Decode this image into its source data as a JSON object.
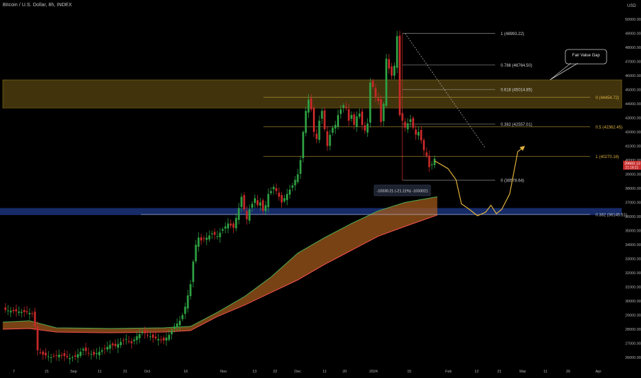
{
  "header": {
    "title": "Bitcoin / U.S. Dollar, 8h, INDEX",
    "currency": "USD"
  },
  "colors": {
    "background": "#000000",
    "up": "#26a69a",
    "candle_up": "#2ea043",
    "candle_down": "#c62828",
    "fvg_band": "#c9a227",
    "blue_band": "#1e3a8a",
    "ribbon_fill": "#a0581c",
    "ribbon_fast": "#4caf50",
    "ribbon_slow": "#ff5252",
    "fib_line": "#bdbdbd",
    "fib_orange": "#e0b341",
    "projection": "#e3b33c"
  },
  "chart_data": {
    "type": "candlestick",
    "symbol": "Bitcoin / U.S. Dollar, 8h, INDEX",
    "price_axis": {
      "min": 26000,
      "max": 50000,
      "step": 1000,
      "labels": [
        "50000.00",
        "49000.00",
        "48000.00",
        "47000.00",
        "46000.00",
        "45000.00",
        "44000.00",
        "43000.00",
        "42000.00",
        "41000.00",
        "40000.00",
        "39000.00",
        "38000.00",
        "37000.00",
        "36000.00",
        "35000.00",
        "34000.00",
        "33000.00",
        "32000.00",
        "31000.00",
        "30000.00",
        "29000.00",
        "28000.00",
        "27000.00",
        "26000.00"
      ]
    },
    "time_axis": [
      "7",
      "21",
      "Sep",
      "11",
      "21",
      "Oct",
      "16",
      "Nov",
      "13",
      "22",
      "Dec",
      "11",
      "20",
      "2024",
      "15",
      "Feb",
      "12",
      "21",
      "Mar",
      "11",
      "20",
      "Apr"
    ],
    "last_price_label": "39660.13",
    "last_price_countdown": "21:19:21",
    "price_path": [
      [
        0,
        29400
      ],
      [
        3,
        29300
      ],
      [
        6,
        29250
      ],
      [
        9,
        29200
      ],
      [
        11,
        29100
      ],
      [
        12,
        28200
      ],
      [
        13,
        26500
      ],
      [
        15,
        26200
      ],
      [
        18,
        26000
      ],
      [
        21,
        26200
      ],
      [
        23,
        26100
      ],
      [
        25,
        25950
      ],
      [
        27,
        26050
      ],
      [
        29,
        26400
      ],
      [
        30,
        26600
      ],
      [
        32,
        26300
      ],
      [
        34,
        26200
      ],
      [
        36,
        26400
      ],
      [
        38,
        26600
      ],
      [
        40,
        26900
      ],
      [
        42,
        26800
      ],
      [
        44,
        27100
      ],
      [
        46,
        27300
      ],
      [
        48,
        27000
      ],
      [
        50,
        27500
      ],
      [
        52,
        27800
      ],
      [
        54,
        27600
      ],
      [
        56,
        27400
      ],
      [
        58,
        27300
      ],
      [
        60,
        27200
      ],
      [
        62,
        27600
      ],
      [
        64,
        28200
      ],
      [
        66,
        28600
      ],
      [
        67,
        29000
      ],
      [
        68,
        29600
      ],
      [
        69,
        30400
      ],
      [
        70,
        31200
      ],
      [
        71,
        32800
      ],
      [
        72,
        34000
      ],
      [
        73,
        34500
      ],
      [
        74,
        34300
      ],
      [
        76,
        34500
      ],
      [
        78,
        34800
      ],
      [
        80,
        34600
      ],
      [
        82,
        35100
      ],
      [
        84,
        35500
      ],
      [
        86,
        35200
      ],
      [
        88,
        36600
      ],
      [
        89,
        37400
      ],
      [
        90,
        36500
      ],
      [
        91,
        35800
      ],
      [
        92,
        36500
      ],
      [
        93,
        36900
      ],
      [
        94,
        37300
      ],
      [
        95,
        36800
      ],
      [
        96,
        37000
      ],
      [
        97,
        36400
      ],
      [
        98,
        36800
      ],
      [
        99,
        37600
      ],
      [
        100,
        37800
      ],
      [
        101,
        38100
      ],
      [
        102,
        37800
      ],
      [
        103,
        37400
      ],
      [
        104,
        37000
      ],
      [
        106,
        37600
      ],
      [
        108,
        38200
      ],
      [
        110,
        39000
      ],
      [
        111,
        40000
      ],
      [
        112,
        42000
      ],
      [
        113,
        43500
      ],
      [
        114,
        44300
      ],
      [
        115,
        43600
      ],
      [
        116,
        42000
      ],
      [
        117,
        41500
      ],
      [
        118,
        42800
      ],
      [
        119,
        43500
      ],
      [
        120,
        42200
      ],
      [
        121,
        41000
      ],
      [
        122,
        41800
      ],
      [
        123,
        42300
      ],
      [
        124,
        42500
      ],
      [
        125,
        43200
      ],
      [
        126,
        43600
      ],
      [
        127,
        43900
      ],
      [
        128,
        43700
      ],
      [
        129,
        42800
      ],
      [
        130,
        43200
      ],
      [
        131,
        42500
      ],
      [
        132,
        43100
      ],
      [
        133,
        43300
      ],
      [
        134,
        42500
      ],
      [
        135,
        42100
      ],
      [
        136,
        42600
      ],
      [
        137,
        45500
      ],
      [
        138,
        45200
      ],
      [
        139,
        44500
      ],
      [
        140,
        44200
      ],
      [
        141,
        42700
      ],
      [
        142,
        44000
      ],
      [
        143,
        47200
      ],
      [
        144,
        46500
      ],
      [
        145,
        46000
      ],
      [
        146,
        46700
      ],
      [
        147,
        48800
      ],
      [
        148,
        43200
      ],
      [
        149,
        42800
      ],
      [
        150,
        42300
      ],
      [
        151,
        42600
      ],
      [
        152,
        42900
      ],
      [
        153,
        42300
      ],
      [
        154,
        41800
      ],
      [
        155,
        42000
      ],
      [
        156,
        41400
      ],
      [
        157,
        40700
      ],
      [
        158,
        40300
      ],
      [
        159,
        39500
      ],
      [
        160,
        39700
      ],
      [
        161,
        40100
      ]
    ],
    "ma_ribbon": {
      "fast": [
        [
          0,
          28500
        ],
        [
          10,
          28600
        ],
        [
          20,
          28100
        ],
        [
          40,
          28050
        ],
        [
          60,
          28100
        ],
        [
          70,
          28200
        ],
        [
          80,
          29200
        ],
        [
          90,
          30300
        ],
        [
          100,
          31700
        ],
        [
          110,
          33400
        ],
        [
          120,
          34500
        ],
        [
          130,
          35500
        ],
        [
          140,
          36400
        ],
        [
          150,
          37000
        ],
        [
          162,
          37400
        ]
      ],
      "slow": [
        [
          0,
          28000
        ],
        [
          10,
          28050
        ],
        [
          20,
          27800
        ],
        [
          40,
          27750
        ],
        [
          60,
          27800
        ],
        [
          70,
          27900
        ],
        [
          80,
          28900
        ],
        [
          90,
          29700
        ],
        [
          100,
          30600
        ],
        [
          110,
          31500
        ],
        [
          120,
          32600
        ],
        [
          130,
          33600
        ],
        [
          140,
          34600
        ],
        [
          150,
          35300
        ],
        [
          162,
          36100
        ]
      ]
    },
    "fib_left": [
      {
        "label": "1 (48993.22)",
        "price": 48993.22
      },
      {
        "label": "0.786 (46764.50)",
        "price": 46764.5
      },
      {
        "label": "0.618 (45014.85)",
        "price": 45014.85
      },
      {
        "label": "0.382 (42557.01)",
        "price": 42557.01
      },
      {
        "label": "0 (38578.64)",
        "price": 38578.64
      }
    ],
    "fib_right": [
      {
        "label": "0 (44454.72)",
        "price": 44454.72,
        "color": "orange"
      },
      {
        "label": "0.5 (42362.45)",
        "price": 42362.45,
        "color": "orange"
      },
      {
        "label": "1 (40270.18)",
        "price": 40270.18,
        "color": "orange"
      },
      {
        "label": "0.382 (36145.51)",
        "price": 36145.51,
        "color": "white"
      }
    ],
    "fair_value_gap": {
      "label": "Fair Value Gap",
      "top": 45700,
      "bottom": 43700
    },
    "blue_zone": {
      "top": 36600,
      "bottom": 36100
    },
    "measure_label": "-10330.21 (-21.11%) -1033021",
    "projection_path": [
      [
        161,
        39950
      ],
      [
        166,
        39400
      ],
      [
        169,
        38600
      ],
      [
        171,
        36900
      ],
      [
        174,
        36500
      ],
      [
        177,
        36050
      ],
      [
        180,
        36300
      ],
      [
        182,
        36800
      ],
      [
        184,
        36200
      ],
      [
        186,
        36500
      ],
      [
        189,
        37600
      ],
      [
        192,
        40600
      ],
      [
        194,
        40900
      ]
    ]
  }
}
